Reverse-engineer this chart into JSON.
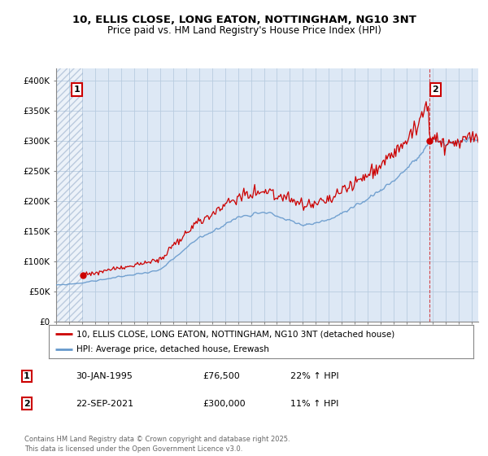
{
  "title_line1": "10, ELLIS CLOSE, LONG EATON, NOTTINGHAM, NG10 3NT",
  "title_line2": "Price paid vs. HM Land Registry's House Price Index (HPI)",
  "legend_label1": "10, ELLIS CLOSE, LONG EATON, NOTTINGHAM, NG10 3NT (detached house)",
  "legend_label2": "HPI: Average price, detached house, Erewash",
  "annotation1_date": "30-JAN-1995",
  "annotation1_price": "£76,500",
  "annotation1_hpi": "22% ↑ HPI",
  "annotation2_date": "22-SEP-2021",
  "annotation2_price": "£300,000",
  "annotation2_hpi": "11% ↑ HPI",
  "footer": "Contains HM Land Registry data © Crown copyright and database right 2025.\nThis data is licensed under the Open Government Licence v3.0.",
  "sale1_year": 1995.08,
  "sale1_price": 76500,
  "sale2_year": 2021.73,
  "sale2_price": 300000,
  "hpi_color": "#6699cc",
  "price_color": "#cc0000",
  "background_color": "#ffffff",
  "plot_bg_color": "#dde8f5",
  "grid_color": "#b8cce0",
  "ylim_min": 0,
  "ylim_max": 420000,
  "xlim_min": 1993.0,
  "xlim_max": 2025.5
}
